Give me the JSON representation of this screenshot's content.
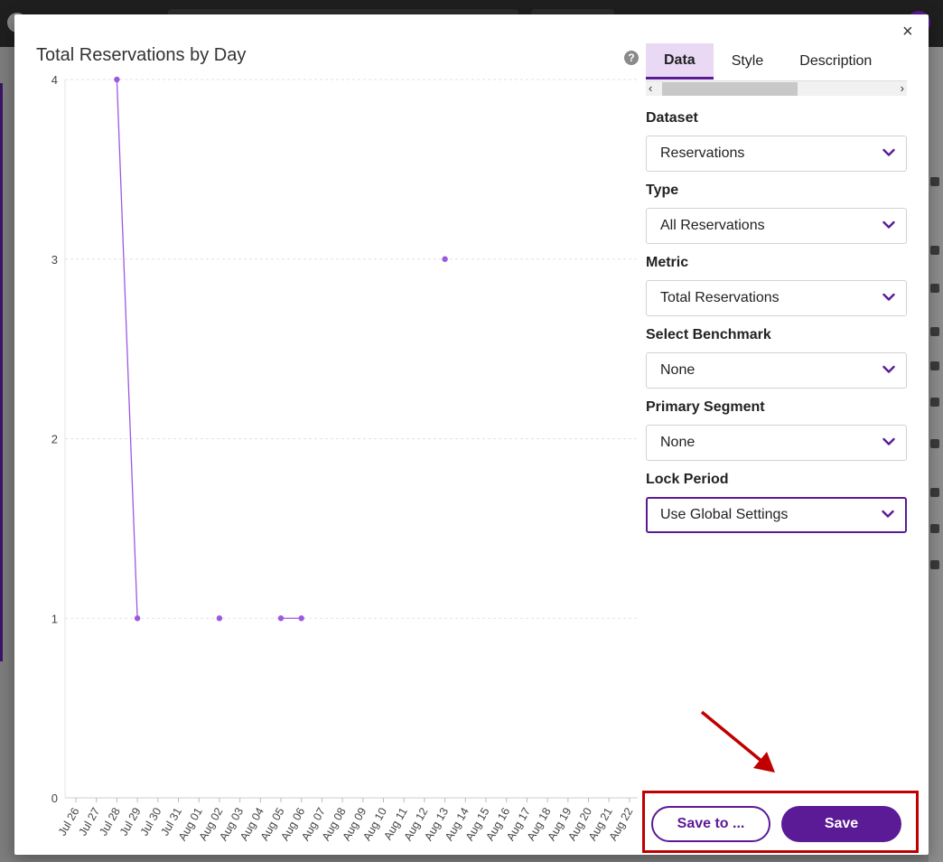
{
  "modal": {
    "title": "Total Reservations by Day",
    "close_symbol": "×",
    "help_symbol": "?"
  },
  "tabs": [
    {
      "label": "Data",
      "active": true
    },
    {
      "label": "Style",
      "active": false
    },
    {
      "label": "Description",
      "active": false
    }
  ],
  "fields": [
    {
      "label": "Dataset",
      "value": "Reservations"
    },
    {
      "label": "Type",
      "value": "All Reservations"
    },
    {
      "label": "Metric",
      "value": "Total Reservations"
    },
    {
      "label": "Select Benchmark",
      "value": "None"
    },
    {
      "label": "Primary Segment",
      "value": "None"
    },
    {
      "label": "Lock Period",
      "value": "Use Global Settings"
    }
  ],
  "buttons": {
    "save_to": "Save to ...",
    "save": "Save"
  },
  "colors": {
    "accent": "#5b1a96",
    "series": "#9b59e0",
    "annotation": "#c00000"
  },
  "chart_data": {
    "type": "line",
    "title": "Total Reservations by Day",
    "categories": [
      "Jul 26",
      "Jul 27",
      "Jul 28",
      "Jul 29",
      "Jul 30",
      "Jul 31",
      "Aug 01",
      "Aug 02",
      "Aug 03",
      "Aug 04",
      "Aug 05",
      "Aug 06",
      "Aug 07",
      "Aug 08",
      "Aug 09",
      "Aug 10",
      "Aug 11",
      "Aug 12",
      "Aug 13",
      "Aug 14",
      "Aug 15",
      "Aug 16",
      "Aug 17",
      "Aug 18",
      "Aug 19",
      "Aug 20",
      "Aug 21",
      "Aug 22"
    ],
    "values": [
      null,
      null,
      4,
      1,
      null,
      null,
      null,
      1,
      null,
      null,
      1,
      1,
      null,
      null,
      null,
      null,
      null,
      null,
      3,
      null,
      null,
      null,
      null,
      null,
      null,
      null,
      null,
      null
    ],
    "yticks": [
      0,
      1,
      2,
      3,
      4
    ],
    "ylim": [
      0,
      4
    ],
    "grid": true
  }
}
